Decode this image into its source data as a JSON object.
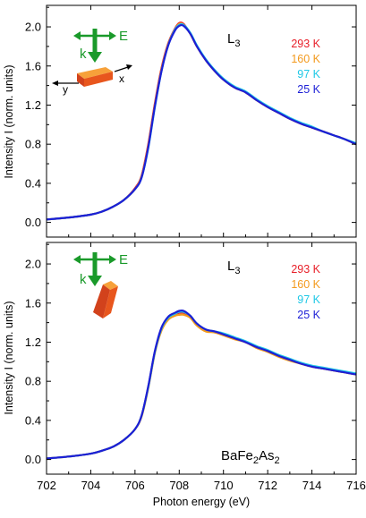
{
  "chart_data": [
    {
      "type": "line",
      "panel": "top",
      "title": "",
      "edge_label": "L",
      "edge_label_sub": "3",
      "xlabel": "",
      "ylabel": "Intensity I (norm. units)",
      "xlim": [
        702,
        716
      ],
      "ylim": [
        -0.15,
        2.22
      ],
      "x_ticks": [
        702,
        704,
        706,
        708,
        710,
        712,
        714,
        716
      ],
      "y_ticks": [
        "0.0",
        "0.4",
        "0.8",
        "1.2",
        "1.6",
        "2.0"
      ],
      "y_tick_values": [
        0.0,
        0.4,
        0.8,
        1.2,
        1.6,
        2.0
      ],
      "geometry_labels": {
        "field": "E",
        "wavevector": "k",
        "x_axis": "x",
        "y_axis": "y"
      },
      "series": [
        {
          "name": "293 K",
          "color": "#e8202a",
          "x": [
            702,
            703,
            704,
            704.5,
            705,
            705.5,
            706,
            706.3,
            706.6,
            706.9,
            707.2,
            707.5,
            707.8,
            708.0,
            708.2,
            708.5,
            708.8,
            709.2,
            709.6,
            710.0,
            710.5,
            711.0,
            711.5,
            712.0,
            712.5,
            713.0,
            713.5,
            714.0,
            714.5,
            715.0,
            715.5,
            716.0
          ],
          "values": [
            0.03,
            0.05,
            0.08,
            0.11,
            0.16,
            0.23,
            0.35,
            0.48,
            0.8,
            1.22,
            1.58,
            1.83,
            1.98,
            2.04,
            2.03,
            1.93,
            1.8,
            1.66,
            1.55,
            1.46,
            1.38,
            1.33,
            1.25,
            1.18,
            1.12,
            1.06,
            1.01,
            0.97,
            0.93,
            0.89,
            0.85,
            0.8
          ]
        },
        {
          "name": "160 K",
          "color": "#f39a1e",
          "x": [
            702,
            703,
            704,
            704.5,
            705,
            705.5,
            706,
            706.3,
            706.6,
            706.9,
            707.2,
            707.5,
            707.8,
            708.0,
            708.2,
            708.5,
            708.8,
            709.2,
            709.6,
            710.0,
            710.5,
            711.0,
            711.5,
            712.0,
            712.5,
            713.0,
            713.5,
            714.0,
            714.5,
            715.0,
            715.5,
            716.0
          ],
          "values": [
            0.03,
            0.05,
            0.08,
            0.11,
            0.16,
            0.23,
            0.34,
            0.47,
            0.78,
            1.2,
            1.56,
            1.82,
            1.97,
            2.03,
            2.02,
            1.93,
            1.8,
            1.66,
            1.55,
            1.46,
            1.38,
            1.33,
            1.25,
            1.18,
            1.12,
            1.06,
            1.01,
            0.97,
            0.93,
            0.89,
            0.85,
            0.8
          ]
        },
        {
          "name": "97 K",
          "color": "#1fc8e6",
          "x": [
            702,
            703,
            704,
            704.5,
            705,
            705.5,
            706,
            706.3,
            706.6,
            706.9,
            707.2,
            707.5,
            707.8,
            708.0,
            708.2,
            708.5,
            708.8,
            709.2,
            709.6,
            710.0,
            710.5,
            711.0,
            711.5,
            712.0,
            712.5,
            713.0,
            713.5,
            714.0,
            714.5,
            715.0,
            715.5,
            716.0
          ],
          "values": [
            0.03,
            0.05,
            0.08,
            0.11,
            0.16,
            0.23,
            0.34,
            0.46,
            0.76,
            1.18,
            1.55,
            1.81,
            1.97,
            2.02,
            2.02,
            1.94,
            1.81,
            1.67,
            1.56,
            1.47,
            1.39,
            1.34,
            1.26,
            1.19,
            1.13,
            1.07,
            1.02,
            0.98,
            0.93,
            0.89,
            0.85,
            0.81
          ]
        },
        {
          "name": "25 K",
          "color": "#1c1fd6",
          "x": [
            702,
            703,
            704,
            704.5,
            705,
            705.5,
            706,
            706.3,
            706.6,
            706.9,
            707.2,
            707.5,
            707.8,
            708.0,
            708.2,
            708.5,
            708.8,
            709.2,
            709.6,
            710.0,
            710.5,
            711.0,
            711.5,
            712.0,
            712.5,
            713.0,
            713.5,
            714.0,
            714.5,
            715.0,
            715.5,
            716.0
          ],
          "values": [
            0.03,
            0.05,
            0.08,
            0.11,
            0.16,
            0.23,
            0.34,
            0.46,
            0.77,
            1.19,
            1.55,
            1.81,
            1.96,
            2.01,
            2.01,
            1.93,
            1.8,
            1.66,
            1.55,
            1.46,
            1.38,
            1.33,
            1.25,
            1.18,
            1.12,
            1.06,
            1.01,
            0.97,
            0.93,
            0.89,
            0.85,
            0.8
          ]
        }
      ]
    },
    {
      "type": "line",
      "panel": "bottom",
      "title": "",
      "edge_label": "L",
      "edge_label_sub": "3",
      "compound": "BaFe",
      "compound_sub1": "2",
      "compound_mid": "As",
      "compound_sub2": "2",
      "xlabel": "Photon energy (eV)",
      "ylabel": "Intensity I (norm. units)",
      "xlim": [
        702,
        716
      ],
      "ylim": [
        -0.15,
        2.22
      ],
      "x_ticks": [
        702,
        704,
        706,
        708,
        710,
        712,
        714,
        716
      ],
      "y_ticks": [
        "0.0",
        "0.4",
        "0.8",
        "1.2",
        "1.6",
        "2.0"
      ],
      "y_tick_values": [
        0.0,
        0.4,
        0.8,
        1.2,
        1.6,
        2.0
      ],
      "geometry_labels": {
        "field": "E",
        "wavevector": "k"
      },
      "series": [
        {
          "name": "293 K",
          "color": "#e8202a",
          "x": [
            702,
            703,
            704,
            704.5,
            705,
            705.5,
            706,
            706.3,
            706.6,
            706.9,
            707.2,
            707.5,
            707.8,
            708.0,
            708.2,
            708.5,
            708.8,
            709.2,
            709.6,
            710.0,
            710.5,
            711.0,
            711.5,
            712.0,
            712.5,
            713.0,
            713.5,
            714.0,
            714.5,
            715.0,
            715.5,
            716.0
          ],
          "values": [
            0.01,
            0.03,
            0.06,
            0.09,
            0.13,
            0.2,
            0.31,
            0.45,
            0.74,
            1.1,
            1.33,
            1.44,
            1.48,
            1.5,
            1.5,
            1.46,
            1.38,
            1.32,
            1.3,
            1.28,
            1.24,
            1.2,
            1.15,
            1.11,
            1.06,
            1.02,
            0.98,
            0.95,
            0.93,
            0.91,
            0.89,
            0.87
          ]
        },
        {
          "name": "160 K",
          "color": "#f39a1e",
          "x": [
            702,
            703,
            704,
            704.5,
            705,
            705.5,
            706,
            706.3,
            706.6,
            706.9,
            707.2,
            707.5,
            707.8,
            708.0,
            708.2,
            708.5,
            708.8,
            709.2,
            709.6,
            710.0,
            710.5,
            711.0,
            711.5,
            712.0,
            712.5,
            713.0,
            713.5,
            714.0,
            714.5,
            715.0,
            715.5,
            716.0
          ],
          "values": [
            0.01,
            0.03,
            0.06,
            0.09,
            0.13,
            0.2,
            0.31,
            0.44,
            0.73,
            1.09,
            1.32,
            1.43,
            1.47,
            1.48,
            1.48,
            1.45,
            1.37,
            1.31,
            1.3,
            1.27,
            1.23,
            1.2,
            1.14,
            1.1,
            1.05,
            1.01,
            0.98,
            0.95,
            0.93,
            0.91,
            0.89,
            0.87
          ]
        },
        {
          "name": "97 K",
          "color": "#1fc8e6",
          "x": [
            702,
            703,
            704,
            704.5,
            705,
            705.5,
            706,
            706.3,
            706.6,
            706.9,
            707.2,
            707.5,
            707.8,
            708.0,
            708.2,
            708.5,
            708.8,
            709.2,
            709.6,
            710.0,
            710.5,
            711.0,
            711.5,
            712.0,
            712.5,
            713.0,
            713.5,
            714.0,
            714.5,
            715.0,
            715.5,
            716.0
          ],
          "values": [
            0.01,
            0.03,
            0.06,
            0.09,
            0.13,
            0.2,
            0.31,
            0.45,
            0.74,
            1.1,
            1.34,
            1.45,
            1.49,
            1.51,
            1.51,
            1.47,
            1.39,
            1.33,
            1.31,
            1.29,
            1.25,
            1.21,
            1.16,
            1.12,
            1.07,
            1.03,
            0.99,
            0.96,
            0.94,
            0.92,
            0.9,
            0.88
          ]
        },
        {
          "name": "25 K",
          "color": "#1c1fd6",
          "x": [
            702,
            703,
            704,
            704.5,
            705,
            705.5,
            706,
            706.3,
            706.6,
            706.9,
            707.2,
            707.5,
            707.8,
            708.0,
            708.2,
            708.5,
            708.8,
            709.2,
            709.6,
            710.0,
            710.5,
            711.0,
            711.5,
            712.0,
            712.5,
            713.0,
            713.5,
            714.0,
            714.5,
            715.0,
            715.5,
            716.0
          ],
          "values": [
            0.01,
            0.03,
            0.06,
            0.09,
            0.13,
            0.2,
            0.31,
            0.45,
            0.75,
            1.11,
            1.35,
            1.46,
            1.5,
            1.52,
            1.52,
            1.47,
            1.39,
            1.33,
            1.31,
            1.28,
            1.24,
            1.2,
            1.15,
            1.11,
            1.06,
            1.02,
            0.98,
            0.95,
            0.93,
            0.91,
            0.89,
            0.87
          ]
        }
      ]
    }
  ]
}
